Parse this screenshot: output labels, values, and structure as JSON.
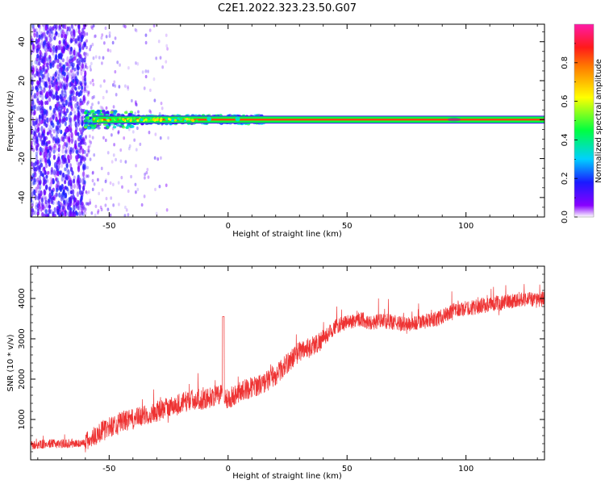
{
  "figure_title": "C2E1.2022.323.23.50.G07",
  "chart_data": [
    {
      "type": "heatmap",
      "xlabel": "Height of straight line (km)",
      "ylabel": "Frequency (Hz)",
      "xlim": [
        -83,
        133
      ],
      "ylim": [
        -50,
        49
      ],
      "xticks": [
        -50,
        0,
        50,
        100
      ],
      "yticks": [
        -40,
        -20,
        0,
        20,
        40
      ],
      "colorbar": {
        "label": "Normalized spectral amplitude",
        "range": [
          0,
          1
        ],
        "ticks": [
          0.0,
          0.2,
          0.4,
          0.6,
          0.8
        ],
        "colormap": "rainbow (purple to red to magenta)"
      },
      "features": [
        {
          "x_range": [
            -83,
            -60
          ],
          "y_range": [
            -50,
            49
          ],
          "amplitude_range": [
            0.05,
            0.2
          ]
        },
        {
          "x_range": [
            -60,
            -20
          ],
          "y_range": [
            -3,
            3
          ],
          "amplitude_range": [
            0.2,
            0.6
          ]
        },
        {
          "x_range": [
            -20,
            133
          ],
          "y_range": [
            -1,
            1
          ],
          "amplitude_range": [
            0.85,
            0.9
          ]
        }
      ]
    },
    {
      "type": "line",
      "xlabel": "Height of straight line (km)",
      "ylabel": "SNR (10 * v/v)",
      "xlim": [
        -83,
        133
      ],
      "ylim": [
        0,
        4800
      ],
      "xticks": [
        -50,
        0,
        50,
        100
      ],
      "yticks": [
        1000,
        2000,
        3000,
        4000
      ],
      "series": [
        {
          "color": "#ee3333",
          "x": [
            -83,
            -75,
            -65,
            -60,
            -55,
            -50,
            -45,
            -40,
            -35,
            -30,
            -25,
            -20,
            -15,
            -10,
            -5,
            -2,
            0,
            5,
            10,
            15,
            20,
            25,
            30,
            35,
            40,
            45,
            50,
            55,
            60,
            65,
            70,
            75,
            80,
            85,
            90,
            95,
            100,
            105,
            110,
            115,
            120,
            125,
            130,
            133
          ],
          "y": [
            350,
            400,
            400,
            420,
            650,
            800,
            950,
            1000,
            1100,
            1200,
            1300,
            1400,
            1500,
            1500,
            1600,
            1600,
            1500,
            1700,
            1800,
            1900,
            2100,
            2400,
            2700,
            2800,
            3000,
            3300,
            3400,
            3500,
            3400,
            3450,
            3400,
            3350,
            3400,
            3450,
            3550,
            3700,
            3750,
            3800,
            3850,
            3900,
            3950,
            4000,
            3950,
            4000
          ]
        }
      ]
    }
  ]
}
